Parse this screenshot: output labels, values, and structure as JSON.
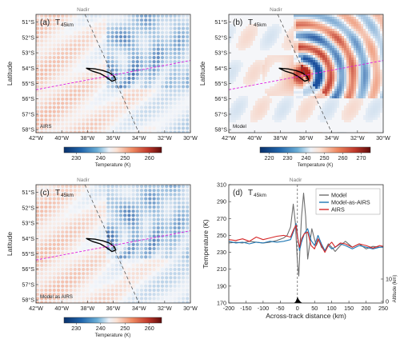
{
  "colors": {
    "model_line": "#6f6f6f",
    "model_as_airs_line": "#1f77b4",
    "airs_line": "#d62728",
    "nadir_track": "#555555",
    "cross_section": "#e020e0",
    "coast": "#000000"
  },
  "maps": [
    {
      "id": "a",
      "label": "(a)",
      "title_main": "T",
      "title_sub": "45km",
      "source_label": "AIRS",
      "colorbar_ticks": [
        "230",
        "240",
        "250",
        "260"
      ],
      "colorbar_label": "Temperature (K)"
    },
    {
      "id": "b",
      "label": "(b)",
      "title_main": "T",
      "title_sub": "45km",
      "source_label": "Model",
      "colorbar_ticks": [
        "220",
        "230",
        "240",
        "250",
        "260",
        "270"
      ],
      "colorbar_label": "Temperature (K)"
    },
    {
      "id": "c",
      "label": "(c)",
      "title_main": "T",
      "title_sub": "45km",
      "source_label": "Model as AIRS",
      "colorbar_ticks": [
        "230",
        "240",
        "250",
        "260"
      ],
      "colorbar_label": "Temperature (K)"
    }
  ],
  "map_axes": {
    "ylabel": "Latitude",
    "lat_ticks": [
      "51°S",
      "52°S",
      "53°S",
      "54°S",
      "55°S",
      "56°S",
      "57°S",
      "58°S"
    ],
    "lon_ticks": [
      "42°W",
      "40°W",
      "38°W",
      "36°W",
      "34°W",
      "32°W",
      "30°W"
    ],
    "nadir_label": "Nadir"
  },
  "chart_data": {
    "type": "line",
    "panel_label": "(d)",
    "title_main": "T",
    "title_sub": "45km",
    "xlabel": "Across-track distance (km)",
    "ylabel": "Temperature (K)",
    "ylabel_right": "Altitude (km)",
    "xlim": [
      -200,
      250
    ],
    "ylim": [
      170,
      310
    ],
    "x_ticks": [
      "-200",
      "-150",
      "-100",
      "-50",
      "0",
      "50",
      "100",
      "150",
      "200",
      "250"
    ],
    "y_ticks": [
      "170",
      "190",
      "210",
      "230",
      "250",
      "270",
      "290",
      "310"
    ],
    "right_ticks": [
      "0",
      "10"
    ],
    "nadir_label": "Nadir",
    "legend_position": "top-right",
    "series": [
      {
        "name": "Model",
        "x": [
          -200,
          -180,
          -160,
          -140,
          -120,
          -100,
          -80,
          -60,
          -40,
          -30,
          -20,
          -12,
          -6,
          0,
          4,
          8,
          12,
          18,
          24,
          30,
          36,
          42,
          48,
          55,
          62,
          70,
          80,
          90,
          100,
          110,
          125,
          140,
          160,
          180,
          200,
          220,
          240,
          250
        ],
        "y": [
          241,
          242,
          241,
          243,
          242,
          241,
          242,
          244,
          247,
          250,
          260,
          287,
          265,
          218,
          202,
          240,
          272,
          300,
          272,
          222,
          240,
          258,
          248,
          238,
          245,
          236,
          232,
          240,
          236,
          231,
          238,
          243,
          236,
          240,
          234,
          237,
          236,
          237
        ]
      },
      {
        "name": "Model-as-AIRS",
        "x": [
          -200,
          -180,
          -160,
          -140,
          -120,
          -100,
          -80,
          -60,
          -40,
          -20,
          -10,
          -4,
          0,
          6,
          12,
          20,
          30,
          40,
          50,
          60,
          70,
          80,
          90,
          100,
          110,
          125,
          140,
          160,
          180,
          200,
          220,
          240,
          250
        ],
        "y": [
          243,
          241,
          242,
          240,
          242,
          241,
          243,
          242,
          243,
          245,
          256,
          264,
          250,
          232,
          242,
          252,
          258,
          244,
          238,
          250,
          240,
          232,
          238,
          234,
          236,
          240,
          238,
          234,
          238,
          236,
          234,
          236,
          236
        ]
      },
      {
        "name": "AIRS",
        "x": [
          -200,
          -180,
          -160,
          -140,
          -120,
          -100,
          -80,
          -60,
          -40,
          -20,
          -10,
          -4,
          0,
          6,
          12,
          20,
          30,
          40,
          50,
          60,
          70,
          80,
          90,
          100,
          110,
          125,
          140,
          160,
          180,
          200,
          220,
          240,
          250
        ],
        "y": [
          245,
          244,
          246,
          243,
          248,
          245,
          247,
          249,
          250,
          248,
          258,
          262,
          248,
          236,
          246,
          252,
          254,
          238,
          234,
          246,
          238,
          230,
          238,
          242,
          236,
          241,
          240,
          236,
          240,
          238,
          235,
          238,
          237
        ]
      }
    ]
  }
}
